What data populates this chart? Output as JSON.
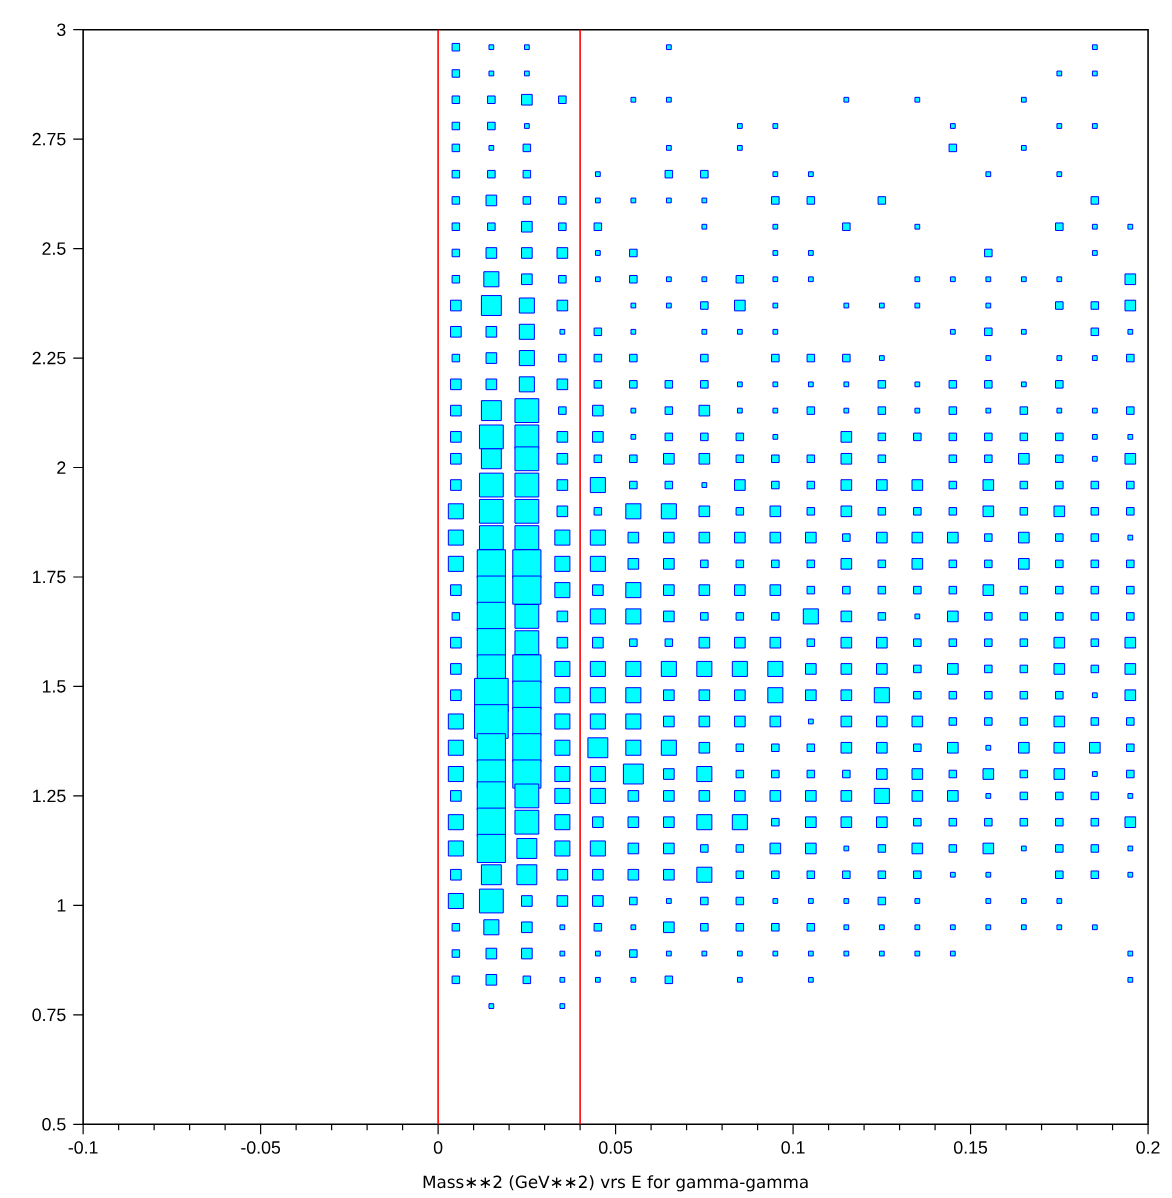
{
  "chart_data": {
    "type": "bubble",
    "xlabel": "Mass∗∗2 (GeV∗∗2) vrs E for gamma-gamma",
    "marker": "square",
    "color": "#00ffff",
    "xlim": [
      -0.1,
      0.2
    ],
    "xticks": [
      -0.1,
      -0.05,
      0,
      0.05,
      0.1,
      0.15,
      0.2
    ],
    "ylim": [
      0.5,
      3
    ],
    "yticks": [
      0.5,
      0.75,
      1,
      1.25,
      1.5,
      1.75,
      2,
      2.25,
      2.5,
      2.75,
      3
    ],
    "ref_lines": [
      {
        "axis": "x",
        "value": 0,
        "color": "#ff0000"
      },
      {
        "axis": "x",
        "value": 0.04,
        "color": "#ff0000"
      }
    ],
    "series": [
      {
        "x": [
          0.005,
          0.005,
          0.005,
          0.005,
          0.005,
          0.005,
          0.005,
          0.005,
          0.005,
          0.005,
          0.005,
          0.005,
          0.005,
          0.005,
          0.005,
          0.005,
          0.005,
          0.005,
          0.005,
          0.005,
          0.005,
          0.005,
          0.005,
          0.005,
          0.005,
          0.005,
          0.005,
          0.005,
          0.005,
          0.005,
          0.005,
          0.005,
          0.005,
          0.005,
          0.005,
          0.005,
          0.005
        ],
        "values": [
          2.96,
          2.9,
          2.84,
          2.78,
          2.73,
          2.67,
          2.61,
          2.55,
          2.49,
          2.43,
          2.37,
          2.31,
          2.25,
          2.19,
          2.13,
          2.07,
          2.02,
          1.96,
          1.9,
          1.84,
          1.78,
          1.72,
          1.66,
          1.6,
          1.54,
          1.48,
          1.42,
          1.36,
          1.3,
          1.25,
          1.19,
          1.13,
          1.07,
          1.01,
          0.95,
          0.89,
          0.83
        ],
        "sizes": [
          0.05,
          0.05,
          0.05,
          0.05,
          0.05,
          0.05,
          0.05,
          0.05,
          0.05,
          0.05,
          0.1,
          0.1,
          0.05,
          0.1,
          0.1,
          0.1,
          0.1,
          0.1,
          0.2,
          0.2,
          0.2,
          0.1,
          0.05,
          0.1,
          0.1,
          0.1,
          0.2,
          0.2,
          0.2,
          0.1,
          0.2,
          0.2,
          0.1,
          0.2,
          0.05,
          0.05,
          0.05
        ]
      },
      {
        "x": [
          0.015,
          0.015,
          0.015,
          0.015,
          0.015,
          0.015,
          0.015,
          0.015,
          0.015,
          0.015,
          0.015,
          0.015,
          0.015,
          0.015,
          0.015,
          0.015,
          0.015,
          0.015,
          0.015,
          0.015,
          0.015,
          0.015,
          0.015,
          0.015,
          0.015,
          0.015,
          0.015,
          0.015,
          0.015,
          0.015,
          0.015,
          0.015,
          0.015,
          0.015,
          0.015,
          0.015,
          0.015,
          0.015
        ],
        "values": [
          2.96,
          2.9,
          2.84,
          2.78,
          2.73,
          2.67,
          2.61,
          2.55,
          2.49,
          2.43,
          2.37,
          2.31,
          2.25,
          2.19,
          2.13,
          2.07,
          2.02,
          1.96,
          1.9,
          1.84,
          1.78,
          1.72,
          1.66,
          1.6,
          1.54,
          1.48,
          1.42,
          1.36,
          1.3,
          1.25,
          1.19,
          1.13,
          1.07,
          1.01,
          0.95,
          0.89,
          0.83,
          0.77
        ],
        "sizes": [
          0.02,
          0.02,
          0.05,
          0.05,
          0.02,
          0.05,
          0.1,
          0.05,
          0.1,
          0.2,
          0.35,
          0.1,
          0.1,
          0.1,
          0.35,
          0.5,
          0.35,
          0.5,
          0.5,
          0.5,
          0.7,
          0.7,
          0.7,
          0.7,
          0.7,
          1,
          1,
          0.7,
          0.7,
          0.7,
          0.7,
          0.7,
          0.35,
          0.5,
          0.2,
          0.1,
          0.1,
          0.02
        ]
      },
      {
        "x": [
          0.025,
          0.025,
          0.025,
          0.025,
          0.025,
          0.025,
          0.025,
          0.025,
          0.025,
          0.025,
          0.025,
          0.025,
          0.025,
          0.025,
          0.025,
          0.025,
          0.025,
          0.025,
          0.025,
          0.025,
          0.025,
          0.025,
          0.025,
          0.025,
          0.025,
          0.025,
          0.025,
          0.025,
          0.025,
          0.025,
          0.025,
          0.025,
          0.025,
          0.025,
          0.025,
          0.025,
          0.025
        ],
        "values": [
          2.96,
          2.9,
          2.84,
          2.78,
          2.73,
          2.67,
          2.61,
          2.55,
          2.49,
          2.43,
          2.37,
          2.31,
          2.25,
          2.19,
          2.13,
          2.07,
          2.02,
          1.96,
          1.9,
          1.84,
          1.78,
          1.72,
          1.66,
          1.6,
          1.54,
          1.48,
          1.42,
          1.36,
          1.3,
          1.25,
          1.19,
          1.13,
          1.07,
          1.01,
          0.95,
          0.89,
          0.83
        ],
        "sizes": [
          0.02,
          0.02,
          0.1,
          0.02,
          0.05,
          0.05,
          0.05,
          0.1,
          0.1,
          0.1,
          0.2,
          0.2,
          0.2,
          0.2,
          0.5,
          0.5,
          0.5,
          0.5,
          0.5,
          0.5,
          0.7,
          0.7,
          0.5,
          0.5,
          0.7,
          0.7,
          0.7,
          0.7,
          0.7,
          0.5,
          0.5,
          0.35,
          0.35,
          0.1,
          0.1,
          0.1,
          0.05
        ]
      },
      {
        "x": [
          0.035,
          0.035,
          0.035,
          0.035,
          0.035,
          0.035,
          0.035,
          0.035,
          0.035,
          0.035,
          0.035,
          0.035,
          0.035,
          0.035,
          0.035,
          0.035,
          0.035,
          0.035,
          0.035,
          0.035,
          0.035,
          0.035,
          0.035,
          0.035,
          0.035,
          0.035,
          0.035,
          0.035,
          0.035,
          0.035,
          0.035,
          0.035,
          0.035
        ],
        "values": [
          2.84,
          2.61,
          2.55,
          2.49,
          2.43,
          2.37,
          2.31,
          2.25,
          2.19,
          2.13,
          2.07,
          2.02,
          1.96,
          1.9,
          1.84,
          1.78,
          1.72,
          1.66,
          1.6,
          1.54,
          1.48,
          1.42,
          1.36,
          1.3,
          1.25,
          1.19,
          1.13,
          1.07,
          1.01,
          0.95,
          0.89,
          0.83,
          0.77
        ],
        "sizes": [
          0.05,
          0.05,
          0.05,
          0.1,
          0.05,
          0.1,
          0.02,
          0.05,
          0.1,
          0.05,
          0.1,
          0.1,
          0.1,
          0.1,
          0.2,
          0.2,
          0.2,
          0.1,
          0.1,
          0.2,
          0.2,
          0.2,
          0.2,
          0.2,
          0.2,
          0.2,
          0.2,
          0.1,
          0.1,
          0.02,
          0.02,
          0.02,
          0.02
        ]
      },
      {
        "x": [
          0.045,
          0.045,
          0.045,
          0.045,
          0.045,
          0.045,
          0.045,
          0.045,
          0.045,
          0.045,
          0.045,
          0.045,
          0.045,
          0.045,
          0.045,
          0.045,
          0.045,
          0.045,
          0.045,
          0.045,
          0.045,
          0.045,
          0.045,
          0.045,
          0.045,
          0.045,
          0.045,
          0.045,
          0.045,
          0.045,
          0.045
        ],
        "values": [
          2.67,
          2.61,
          2.55,
          2.49,
          2.43,
          2.31,
          2.25,
          2.19,
          2.13,
          2.07,
          2.02,
          1.96,
          1.9,
          1.84,
          1.78,
          1.72,
          1.66,
          1.6,
          1.54,
          1.48,
          1.42,
          1.36,
          1.3,
          1.25,
          1.19,
          1.13,
          1.07,
          1.01,
          0.95,
          0.89,
          0.83
        ],
        "sizes": [
          0.02,
          0.02,
          0.05,
          0.02,
          0.02,
          0.05,
          0.05,
          0.05,
          0.1,
          0.1,
          0.05,
          0.2,
          0.05,
          0.2,
          0.2,
          0.1,
          0.2,
          0.1,
          0.2,
          0.2,
          0.2,
          0.35,
          0.2,
          0.2,
          0.1,
          0.2,
          0.1,
          0.1,
          0.05,
          0.02,
          0.02
        ]
      },
      {
        "x": [
          0.055,
          0.055,
          0.055,
          0.055,
          0.055,
          0.055,
          0.055,
          0.055,
          0.055,
          0.055,
          0.055,
          0.055,
          0.055,
          0.055,
          0.055,
          0.055,
          0.055,
          0.055,
          0.055,
          0.055,
          0.055,
          0.055,
          0.055,
          0.055,
          0.055,
          0.055,
          0.055,
          0.055,
          0.055,
          0.055,
          0.055
        ],
        "values": [
          2.84,
          2.61,
          2.49,
          2.43,
          2.37,
          2.31,
          2.25,
          2.19,
          2.13,
          2.07,
          2.02,
          1.96,
          1.9,
          1.84,
          1.78,
          1.72,
          1.66,
          1.6,
          1.54,
          1.48,
          1.42,
          1.36,
          1.3,
          1.25,
          1.19,
          1.13,
          1.07,
          1.01,
          0.95,
          0.89,
          0.83
        ],
        "sizes": [
          0.02,
          0.02,
          0.05,
          0.05,
          0.02,
          0.02,
          0.05,
          0.05,
          0.02,
          0.02,
          0.05,
          0.05,
          0.2,
          0.1,
          0.1,
          0.2,
          0.2,
          0.05,
          0.2,
          0.2,
          0.2,
          0.2,
          0.35,
          0.1,
          0.1,
          0.1,
          0.1,
          0.05,
          0.02,
          0.05,
          0.02
        ]
      },
      {
        "x": [
          0.065,
          0.065,
          0.065,
          0.065,
          0.065,
          0.065,
          0.065,
          0.065,
          0.065,
          0.065,
          0.065,
          0.065,
          0.065,
          0.065,
          0.065,
          0.065,
          0.065,
          0.065,
          0.065,
          0.065,
          0.065,
          0.065,
          0.065,
          0.065,
          0.065,
          0.065,
          0.065,
          0.065,
          0.065,
          0.065,
          0.065
        ],
        "values": [
          2.96,
          2.84,
          2.73,
          2.67,
          2.61,
          2.43,
          2.37,
          2.19,
          2.13,
          2.07,
          2.02,
          1.96,
          1.9,
          1.84,
          1.78,
          1.72,
          1.66,
          1.6,
          1.54,
          1.48,
          1.42,
          1.36,
          1.3,
          1.25,
          1.19,
          1.13,
          1.07,
          1.01,
          0.95,
          0.89,
          0.83
        ],
        "sizes": [
          0.02,
          0.02,
          0.02,
          0.05,
          0.02,
          0.02,
          0.02,
          0.05,
          0.05,
          0.05,
          0.1,
          0.05,
          0.2,
          0.1,
          0.1,
          0.1,
          0.1,
          0.05,
          0.2,
          0.1,
          0.1,
          0.2,
          0.1,
          0.1,
          0.1,
          0.1,
          0.1,
          0.02,
          0.1,
          0.02,
          0.05
        ]
      },
      {
        "x": [
          0.075,
          0.075,
          0.075,
          0.075,
          0.075,
          0.075,
          0.075,
          0.075,
          0.075,
          0.075,
          0.075,
          0.075,
          0.075,
          0.075,
          0.075,
          0.075,
          0.075,
          0.075,
          0.075,
          0.075,
          0.075,
          0.075,
          0.075,
          0.075,
          0.075,
          0.075,
          0.075,
          0.075,
          0.075,
          0.075
        ],
        "values": [
          2.67,
          2.61,
          2.55,
          2.43,
          2.37,
          2.31,
          2.25,
          2.19,
          2.13,
          2.07,
          2.02,
          1.96,
          1.9,
          1.84,
          1.78,
          1.72,
          1.66,
          1.6,
          1.54,
          1.48,
          1.42,
          1.36,
          1.3,
          1.25,
          1.19,
          1.13,
          1.07,
          1.01,
          0.95,
          0.89
        ],
        "sizes": [
          0.05,
          0.02,
          0.02,
          0.02,
          0.05,
          0.02,
          0.05,
          0.05,
          0.1,
          0.05,
          0.1,
          0.02,
          0.1,
          0.1,
          0.05,
          0.1,
          0.05,
          0.1,
          0.2,
          0.1,
          0.1,
          0.1,
          0.2,
          0.1,
          0.2,
          0.05,
          0.2,
          0.05,
          0.05,
          0.02
        ]
      },
      {
        "x": [
          0.085,
          0.085,
          0.085,
          0.085,
          0.085,
          0.085,
          0.085,
          0.085,
          0.085,
          0.085,
          0.085,
          0.085,
          0.085,
          0.085,
          0.085,
          0.085,
          0.085,
          0.085,
          0.085,
          0.085,
          0.085,
          0.085,
          0.085,
          0.085,
          0.085,
          0.085,
          0.085,
          0.085,
          0.085
        ],
        "values": [
          2.78,
          2.73,
          2.43,
          2.37,
          2.31,
          2.19,
          2.13,
          2.07,
          2.02,
          1.96,
          1.9,
          1.84,
          1.78,
          1.72,
          1.66,
          1.6,
          1.54,
          1.48,
          1.42,
          1.36,
          1.3,
          1.25,
          1.19,
          1.13,
          1.07,
          1.01,
          0.95,
          0.89,
          0.83
        ],
        "sizes": [
          0.02,
          0.02,
          0.05,
          0.1,
          0.02,
          0.02,
          0.02,
          0.05,
          0.05,
          0.1,
          0.05,
          0.1,
          0.05,
          0.1,
          0.05,
          0.1,
          0.2,
          0.1,
          0.1,
          0.05,
          0.05,
          0.1,
          0.2,
          0.05,
          0.05,
          0.05,
          0.05,
          0.02,
          0.02
        ]
      },
      {
        "x": [
          0.095,
          0.095,
          0.095,
          0.095,
          0.095,
          0.095,
          0.095,
          0.095,
          0.095,
          0.095,
          0.095,
          0.095,
          0.095,
          0.095,
          0.095,
          0.095,
          0.095,
          0.095,
          0.095,
          0.095,
          0.095,
          0.095,
          0.095,
          0.095,
          0.095,
          0.095,
          0.095,
          0.095,
          0.095,
          0.095,
          0.095,
          0.095
        ],
        "values": [
          2.78,
          2.67,
          2.61,
          2.55,
          2.49,
          2.43,
          2.37,
          2.31,
          2.25,
          2.19,
          2.13,
          2.07,
          2.02,
          1.96,
          1.9,
          1.84,
          1.78,
          1.72,
          1.66,
          1.6,
          1.54,
          1.48,
          1.42,
          1.36,
          1.3,
          1.25,
          1.19,
          1.13,
          1.07,
          1.01,
          0.95,
          0.89
        ],
        "sizes": [
          0.02,
          0.02,
          0.05,
          0.02,
          0.02,
          0.02,
          0.02,
          0.02,
          0.05,
          0.02,
          0.02,
          0.02,
          0.05,
          0.05,
          0.1,
          0.1,
          0.05,
          0.1,
          0.05,
          0.1,
          0.2,
          0.2,
          0.1,
          0.05,
          0.05,
          0.1,
          0.05,
          0.1,
          0.05,
          0.02,
          0.05,
          0.02
        ]
      },
      {
        "x": [
          0.105,
          0.105,
          0.105,
          0.105,
          0.105,
          0.105,
          0.105,
          0.105,
          0.105,
          0.105,
          0.105,
          0.105,
          0.105,
          0.105,
          0.105,
          0.105,
          0.105,
          0.105,
          0.105,
          0.105,
          0.105,
          0.105,
          0.105,
          0.105,
          0.105,
          0.105,
          0.105,
          0.105
        ],
        "values": [
          2.67,
          2.61,
          2.49,
          2.43,
          2.25,
          2.19,
          2.13,
          2.02,
          1.96,
          1.9,
          1.84,
          1.78,
          1.72,
          1.66,
          1.6,
          1.54,
          1.48,
          1.42,
          1.36,
          1.3,
          1.25,
          1.19,
          1.13,
          1.07,
          1.01,
          0.95,
          0.89,
          0.83
        ],
        "sizes": [
          0.02,
          0.05,
          0.02,
          0.02,
          0.05,
          0.02,
          0.05,
          0.05,
          0.05,
          0.05,
          0.1,
          0.05,
          0.05,
          0.2,
          0.05,
          0.1,
          0.1,
          0.02,
          0.05,
          0.05,
          0.1,
          0.1,
          0.1,
          0.05,
          0.02,
          0.05,
          0.02,
          0.02
        ]
      },
      {
        "x": [
          0.115,
          0.115,
          0.115,
          0.115,
          0.115,
          0.115,
          0.115,
          0.115,
          0.115,
          0.115,
          0.115,
          0.115,
          0.115,
          0.115,
          0.115,
          0.115,
          0.115,
          0.115,
          0.115,
          0.115,
          0.115,
          0.115,
          0.115,
          0.115,
          0.115,
          0.115,
          0.115
        ],
        "values": [
          2.84,
          2.55,
          2.37,
          2.25,
          2.19,
          2.13,
          2.07,
          2.02,
          1.96,
          1.9,
          1.84,
          1.78,
          1.72,
          1.66,
          1.6,
          1.54,
          1.48,
          1.42,
          1.36,
          1.3,
          1.25,
          1.19,
          1.13,
          1.07,
          1.01,
          0.95,
          0.89
        ],
        "sizes": [
          0.02,
          0.05,
          0.02,
          0.05,
          0.02,
          0.02,
          0.1,
          0.1,
          0.1,
          0.1,
          0.05,
          0.1,
          0.05,
          0.1,
          0.1,
          0.1,
          0.1,
          0.1,
          0.1,
          0.05,
          0.1,
          0.1,
          0.02,
          0.05,
          0.02,
          0.02,
          0.02
        ]
      },
      {
        "x": [
          0.125,
          0.125,
          0.125,
          0.125,
          0.125,
          0.125,
          0.125,
          0.125,
          0.125,
          0.125,
          0.125,
          0.125,
          0.125,
          0.125,
          0.125,
          0.125,
          0.125,
          0.125,
          0.125,
          0.125,
          0.125,
          0.125,
          0.125,
          0.125,
          0.125,
          0.125
        ],
        "values": [
          2.61,
          2.37,
          2.25,
          2.19,
          2.13,
          2.07,
          2.02,
          1.96,
          1.9,
          1.84,
          1.78,
          1.72,
          1.66,
          1.6,
          1.54,
          1.48,
          1.42,
          1.36,
          1.3,
          1.25,
          1.19,
          1.13,
          1.07,
          1.01,
          0.95,
          0.89
        ],
        "sizes": [
          0.05,
          0.02,
          0.02,
          0.05,
          0.05,
          0.05,
          0.05,
          0.1,
          0.05,
          0.1,
          0.05,
          0.05,
          0.05,
          0.1,
          0.1,
          0.2,
          0.1,
          0.1,
          0.1,
          0.2,
          0.1,
          0.05,
          0.05,
          0.05,
          0.02,
          0.02
        ]
      },
      {
        "x": [
          0.135,
          0.135,
          0.135,
          0.135,
          0.135,
          0.135,
          0.135,
          0.135,
          0.135,
          0.135,
          0.135,
          0.135,
          0.135,
          0.135,
          0.135,
          0.135,
          0.135,
          0.135,
          0.135,
          0.135,
          0.135,
          0.135,
          0.135,
          0.135,
          0.135,
          0.135
        ],
        "values": [
          2.84,
          2.55,
          2.43,
          2.37,
          2.19,
          2.13,
          2.07,
          1.96,
          1.9,
          1.84,
          1.78,
          1.72,
          1.66,
          1.6,
          1.54,
          1.48,
          1.42,
          1.36,
          1.3,
          1.25,
          1.19,
          1.13,
          1.07,
          1.01,
          0.95,
          0.89
        ],
        "sizes": [
          0.02,
          0.02,
          0.02,
          0.02,
          0.02,
          0.02,
          0.05,
          0.1,
          0.05,
          0.1,
          0.1,
          0.05,
          0.02,
          0.05,
          0.05,
          0.05,
          0.1,
          0.05,
          0.1,
          0.1,
          0.05,
          0.1,
          0.05,
          0.02,
          0.02,
          0.02
        ]
      },
      {
        "x": [
          0.145,
          0.145,
          0.145,
          0.145,
          0.145,
          0.145,
          0.145,
          0.145,
          0.145,
          0.145,
          0.145,
          0.145,
          0.145,
          0.145,
          0.145,
          0.145,
          0.145,
          0.145,
          0.145,
          0.145,
          0.145,
          0.145,
          0.145,
          0.145,
          0.145,
          0.145
        ],
        "values": [
          2.78,
          2.73,
          2.43,
          2.31,
          2.19,
          2.13,
          2.07,
          2.02,
          1.96,
          1.9,
          1.84,
          1.78,
          1.72,
          1.66,
          1.6,
          1.54,
          1.48,
          1.42,
          1.36,
          1.3,
          1.25,
          1.19,
          1.13,
          1.07,
          0.95,
          0.89
        ],
        "sizes": [
          0.02,
          0.05,
          0.02,
          0.02,
          0.05,
          0.05,
          0.05,
          0.05,
          0.05,
          0.05,
          0.1,
          0.05,
          0.05,
          0.1,
          0.05,
          0.1,
          0.05,
          0.05,
          0.1,
          0.05,
          0.1,
          0.05,
          0.05,
          0.02,
          0.02,
          0.02
        ]
      },
      {
        "x": [
          0.155,
          0.155,
          0.155,
          0.155,
          0.155,
          0.155,
          0.155,
          0.155,
          0.155,
          0.155,
          0.155,
          0.155,
          0.155,
          0.155,
          0.155,
          0.155,
          0.155,
          0.155,
          0.155,
          0.155,
          0.155,
          0.155,
          0.155,
          0.155,
          0.155,
          0.155,
          0.155,
          0.155
        ],
        "values": [
          2.67,
          2.49,
          2.43,
          2.37,
          2.31,
          2.25,
          2.19,
          2.13,
          2.07,
          2.02,
          1.96,
          1.9,
          1.84,
          1.78,
          1.72,
          1.66,
          1.6,
          1.54,
          1.48,
          1.42,
          1.36,
          1.3,
          1.25,
          1.19,
          1.13,
          1.07,
          1.01,
          0.95
        ],
        "sizes": [
          0.02,
          0.05,
          0.02,
          0.02,
          0.05,
          0.02,
          0.05,
          0.02,
          0.05,
          0.05,
          0.1,
          0.1,
          0.05,
          0.05,
          0.1,
          0.05,
          0.05,
          0.05,
          0.05,
          0.05,
          0.02,
          0.1,
          0.02,
          0.05,
          0.1,
          0.02,
          0.02,
          0.02
        ]
      },
      {
        "x": [
          0.165,
          0.165,
          0.165,
          0.165,
          0.165,
          0.165,
          0.165,
          0.165,
          0.165,
          0.165,
          0.165,
          0.165,
          0.165,
          0.165,
          0.165,
          0.165,
          0.165,
          0.165,
          0.165,
          0.165,
          0.165,
          0.165,
          0.165,
          0.165,
          0.165
        ],
        "values": [
          2.84,
          2.73,
          2.43,
          2.31,
          2.19,
          2.13,
          2.07,
          2.02,
          1.96,
          1.9,
          1.84,
          1.78,
          1.72,
          1.66,
          1.6,
          1.54,
          1.48,
          1.42,
          1.36,
          1.3,
          1.25,
          1.19,
          1.13,
          1.01,
          0.95
        ],
        "sizes": [
          0.02,
          0.02,
          0.02,
          0.02,
          0.02,
          0.05,
          0.05,
          0.1,
          0.05,
          0.05,
          0.1,
          0.1,
          0.05,
          0.05,
          0.05,
          0.05,
          0.05,
          0.05,
          0.1,
          0.05,
          0.05,
          0.05,
          0.02,
          0.02,
          0.02
        ]
      },
      {
        "x": [
          0.175,
          0.175,
          0.175,
          0.175,
          0.175,
          0.175,
          0.175,
          0.175,
          0.175,
          0.175,
          0.175,
          0.175,
          0.175,
          0.175,
          0.175,
          0.175,
          0.175,
          0.175,
          0.175,
          0.175,
          0.175,
          0.175,
          0.175,
          0.175,
          0.175,
          0.175,
          0.175,
          0.175,
          0.175
        ],
        "values": [
          2.9,
          2.78,
          2.67,
          2.55,
          2.43,
          2.37,
          2.25,
          2.19,
          2.13,
          2.07,
          2.02,
          1.96,
          1.9,
          1.84,
          1.78,
          1.72,
          1.66,
          1.6,
          1.54,
          1.48,
          1.42,
          1.36,
          1.3,
          1.25,
          1.19,
          1.13,
          1.07,
          1.01,
          0.95
        ],
        "sizes": [
          0.02,
          0.02,
          0.02,
          0.05,
          0.02,
          0.05,
          0.02,
          0.05,
          0.02,
          0.05,
          0.05,
          0.05,
          0.1,
          0.05,
          0.05,
          0.05,
          0.05,
          0.1,
          0.1,
          0.05,
          0.1,
          0.1,
          0.1,
          0.05,
          0.05,
          0.05,
          0.05,
          0.02,
          0.02
        ]
      },
      {
        "x": [
          0.185,
          0.185,
          0.185,
          0.185,
          0.185,
          0.185,
          0.185,
          0.185,
          0.185,
          0.185,
          0.185,
          0.185,
          0.185,
          0.185,
          0.185,
          0.185,
          0.185,
          0.185,
          0.185,
          0.185,
          0.185,
          0.185,
          0.185,
          0.185,
          0.185,
          0.185,
          0.185,
          0.185,
          0.185
        ],
        "values": [
          2.96,
          2.9,
          2.78,
          2.61,
          2.55,
          2.49,
          2.37,
          2.31,
          2.25,
          2.13,
          2.07,
          2.02,
          1.96,
          1.9,
          1.84,
          1.78,
          1.72,
          1.66,
          1.6,
          1.54,
          1.48,
          1.42,
          1.36,
          1.3,
          1.25,
          1.19,
          1.13,
          1.07,
          0.95
        ],
        "sizes": [
          0.02,
          0.02,
          0.02,
          0.05,
          0.02,
          0.02,
          0.05,
          0.05,
          0.02,
          0.02,
          0.02,
          0.02,
          0.05,
          0.05,
          0.05,
          0.05,
          0.05,
          0.05,
          0.05,
          0.05,
          0.02,
          0.05,
          0.1,
          0.02,
          0.05,
          0.05,
          0.05,
          0.05,
          0.02
        ]
      },
      {
        "x": [
          0.195,
          0.195,
          0.195,
          0.195,
          0.195,
          0.195,
          0.195,
          0.195,
          0.195,
          0.195,
          0.195,
          0.195,
          0.195,
          0.195,
          0.195,
          0.195,
          0.195,
          0.195,
          0.195,
          0.195,
          0.195,
          0.195,
          0.195,
          0.195,
          0.195,
          0.195
        ],
        "values": [
          2.55,
          2.43,
          2.37,
          2.31,
          2.25,
          2.13,
          2.07,
          2.02,
          1.96,
          1.9,
          1.84,
          1.78,
          1.72,
          1.66,
          1.6,
          1.54,
          1.48,
          1.42,
          1.36,
          1.3,
          1.25,
          1.19,
          1.13,
          1.07,
          0.89,
          0.83
        ],
        "sizes": [
          0.02,
          0.1,
          0.1,
          0.02,
          0.05,
          0.05,
          0.02,
          0.1,
          0.05,
          0.05,
          0.02,
          0.05,
          0.05,
          0.05,
          0.1,
          0.1,
          0.1,
          0.05,
          0.05,
          0.05,
          0.02,
          0.1,
          0.02,
          0.02,
          0.02,
          0.02
        ]
      }
    ]
  }
}
